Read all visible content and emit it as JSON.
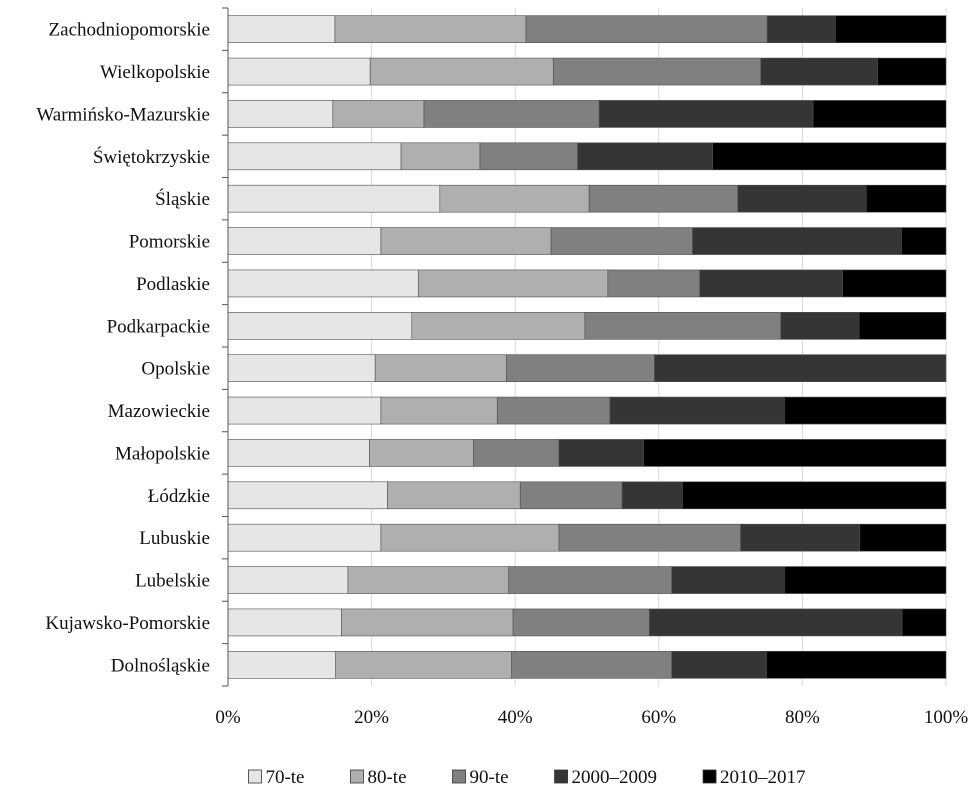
{
  "chart_data": {
    "type": "bar",
    "orientation": "horizontal",
    "stacked": "percent",
    "categories": [
      "Zachodniopomorskie",
      "Wielkopolskie",
      "Warmińsko-Mazurskie",
      "Świętokrzyskie",
      "Śląskie",
      "Pomorskie",
      "Podlaskie",
      "Podkarpackie",
      "Opolskie",
      "Mazowieckie",
      "Małopolskie",
      "Łódzkie",
      "Lubuskie",
      "Lubelskie",
      "Kujawsko-Pomorskie",
      "Dolnośląskie"
    ],
    "series": [
      {
        "name": "70-te",
        "color": "#e6e6e6",
        "values": [
          14.9,
          19.8,
          14.6,
          24.1,
          29.5,
          21.3,
          26.5,
          25.6,
          20.5,
          21.3,
          19.7,
          22.2,
          21.3,
          16.7,
          15.8,
          15.0
        ]
      },
      {
        "name": "80-te",
        "color": "#afafaf",
        "values": [
          26.6,
          25.5,
          12.7,
          11.0,
          20.8,
          23.7,
          26.4,
          24.1,
          18.3,
          16.2,
          14.5,
          18.5,
          24.8,
          22.4,
          23.9,
          24.5
        ]
      },
      {
        "name": "90-te",
        "color": "#808080",
        "values": [
          33.6,
          28.9,
          24.4,
          13.6,
          20.7,
          19.7,
          12.8,
          27.3,
          20.6,
          15.7,
          11.9,
          14.2,
          25.3,
          22.7,
          19.0,
          22.3
        ]
      },
      {
        "name": "2000–2009",
        "color": "#353535",
        "values": [
          9.5,
          16.3,
          29.8,
          18.8,
          17.9,
          29.1,
          19.9,
          10.9,
          40.6,
          24.3,
          11.8,
          8.4,
          16.6,
          15.7,
          35.2,
          13.2
        ]
      },
      {
        "name": "2010–2017",
        "color": "#000000",
        "values": [
          15.4,
          9.5,
          18.5,
          32.5,
          11.1,
          6.2,
          14.4,
          12.1,
          0.0,
          22.5,
          42.1,
          36.7,
          12.0,
          22.5,
          6.1,
          25.0
        ]
      }
    ],
    "xlim": [
      0,
      100
    ],
    "xticks": [
      "0%",
      "20%",
      "40%",
      "60%",
      "80%",
      "100%"
    ],
    "xtick_values": [
      0,
      20,
      40,
      60,
      80,
      100
    ],
    "grid": "vertical",
    "legend": "bottom",
    "title": "",
    "xlabel": "",
    "ylabel": ""
  }
}
